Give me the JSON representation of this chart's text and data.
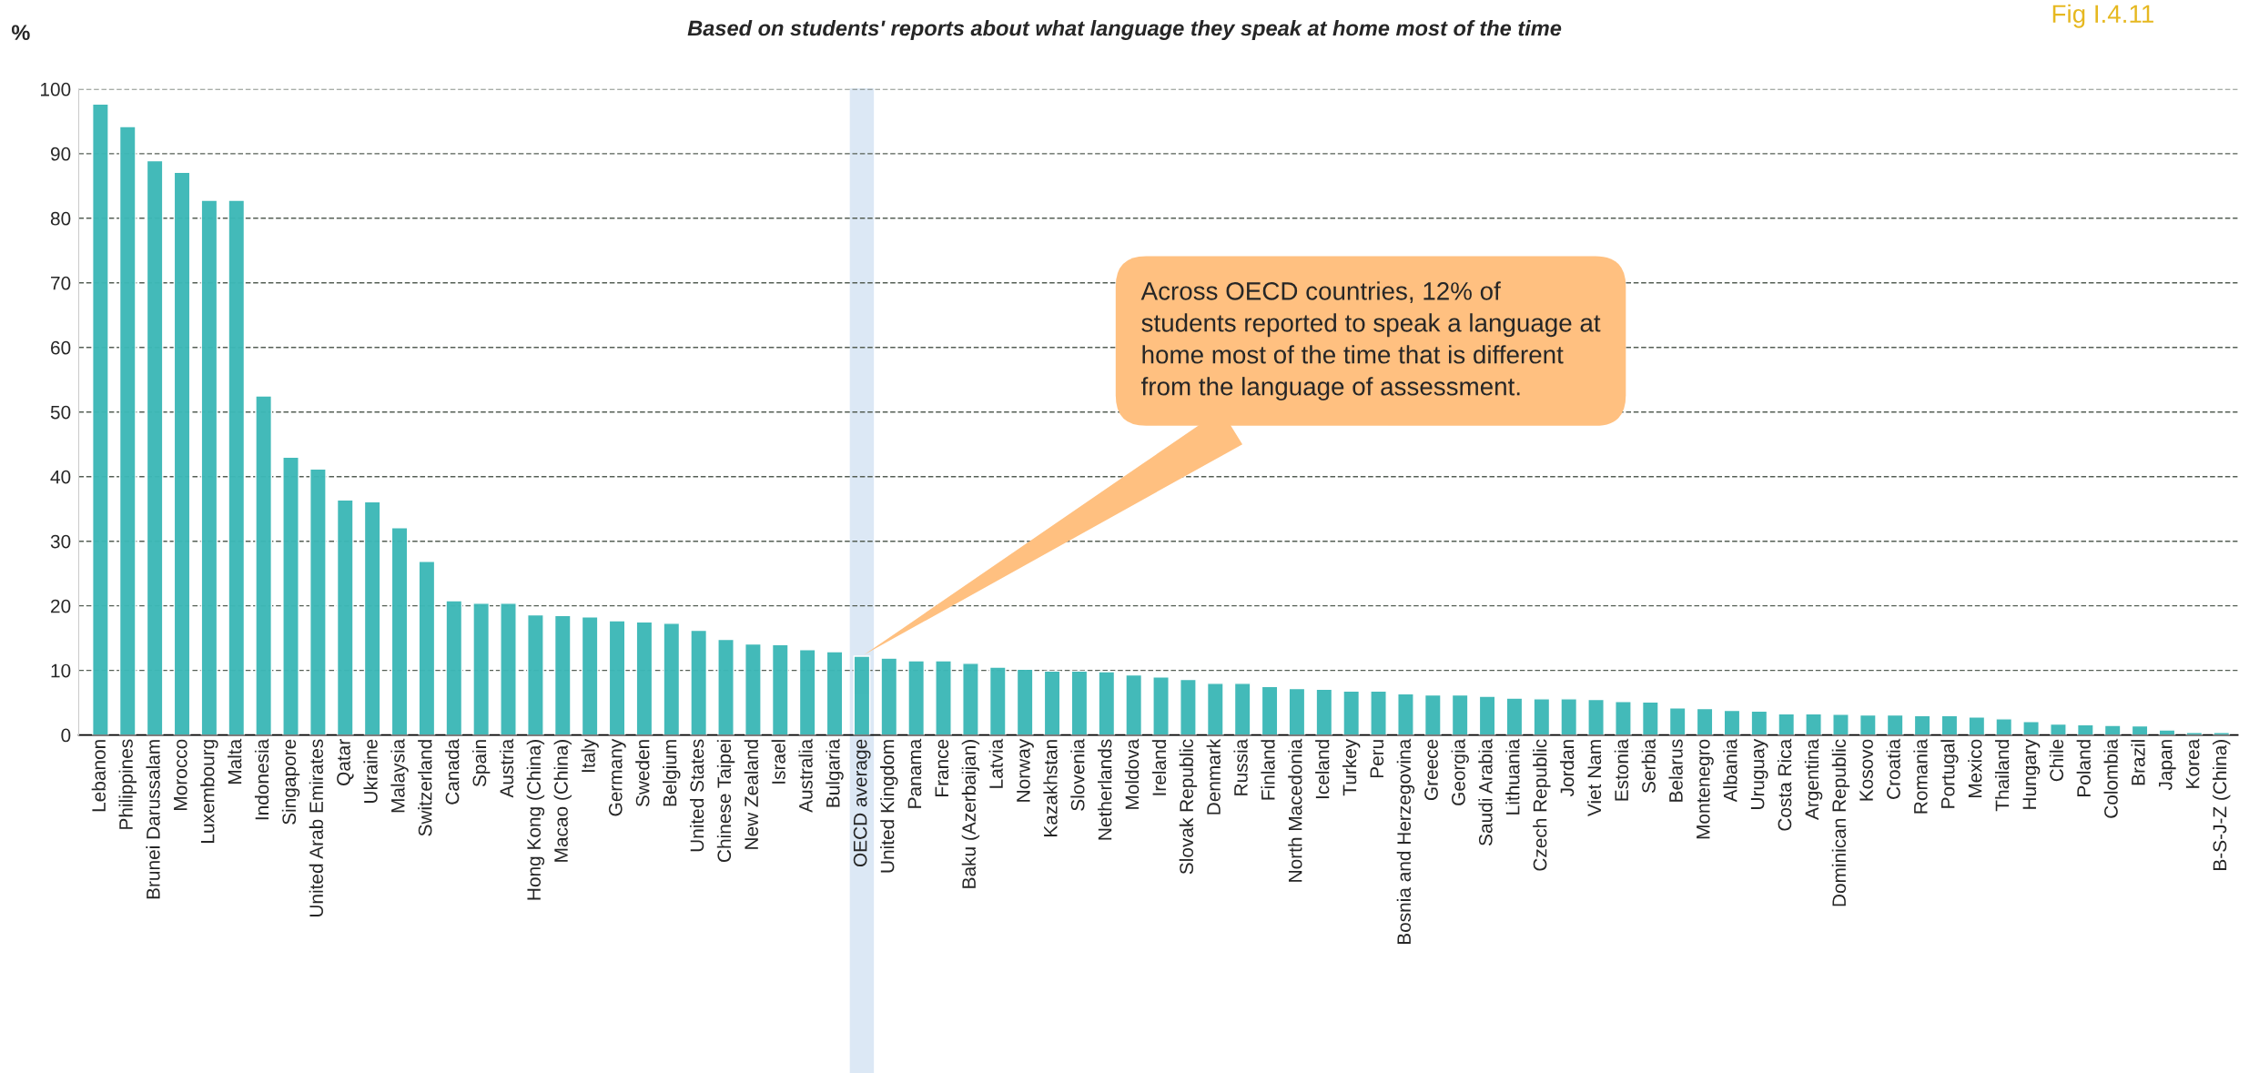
{
  "chart_data": {
    "type": "bar",
    "title": "Based on students' reports about what language they speak at home most of the time",
    "ylabel": "%",
    "categories": [
      "Lebanon",
      "Philippines",
      "Brunei Darussalam",
      "Morocco",
      "Luxembourg",
      "Malta",
      "Indonesia",
      "Singapore",
      "United Arab Emirates",
      "Qatar",
      "Ukraine",
      "Malaysia",
      "Switzerland",
      "Canada",
      "Spain",
      "Austria",
      "Hong Kong (China)",
      "Macao (China)",
      "Italy",
      "Germany",
      "Sweden",
      "Belgium",
      "United States",
      "Chinese Taipei",
      "New Zealand",
      "Israel",
      "Australia",
      "Bulgaria",
      "OECD average",
      "United Kingdom",
      "Panama",
      "France",
      "Baku (Azerbaijan)",
      "Latvia",
      "Norway",
      "Kazakhstan",
      "Slovenia",
      "Netherlands",
      "Moldova",
      "Ireland",
      "Slovak Republic",
      "Denmark",
      "Russia",
      "Finland",
      "North Macedonia",
      "Iceland",
      "Turkey",
      "Peru",
      "Bosnia and Herzegovina",
      "Greece",
      "Georgia",
      "Saudi Arabia",
      "Lithuania",
      "Czech Republic",
      "Jordan",
      "Viet Nam",
      "Estonia",
      "Serbia",
      "Belarus",
      "Montenegro",
      "Albania",
      "Uruguay",
      "Costa Rica",
      "Argentina",
      "Dominican Republic",
      "Kosovo",
      "Croatia",
      "Romania",
      "Portugal",
      "Mexico",
      "Thailand",
      "Hungary",
      "Chile",
      "Poland",
      "Colombia",
      "Brazil",
      "Japan",
      "Korea",
      "B-S-J-Z (China)"
    ],
    "values": [
      97.7,
      94.2,
      88.9,
      87.1,
      82.8,
      82.8,
      52.5,
      43.0,
      41.2,
      36.4,
      36.1,
      32.1,
      26.9,
      20.8,
      20.4,
      20.4,
      18.6,
      18.5,
      18.3,
      17.7,
      17.5,
      17.3,
      16.2,
      14.8,
      14.1,
      14.0,
      13.2,
      12.9,
      12.2,
      11.9,
      11.5,
      11.5,
      11.1,
      10.5,
      10.2,
      9.9,
      9.9,
      9.8,
      9.3,
      9.0,
      8.6,
      8.0,
      8.0,
      7.5,
      7.2,
      7.1,
      6.8,
      6.8,
      6.4,
      6.2,
      6.2,
      6.0,
      5.7,
      5.6,
      5.6,
      5.5,
      5.2,
      5.1,
      4.2,
      4.1,
      3.8,
      3.7,
      3.3,
      3.3,
      3.2,
      3.1,
      3.1,
      3.0,
      3.0,
      2.8,
      2.5,
      2.1,
      1.7,
      1.6,
      1.5,
      1.4,
      0.8,
      0.4,
      0.4
    ],
    "color": "#3db8b7",
    "ylim": [
      0,
      100
    ],
    "yticks": [
      0,
      10,
      20,
      30,
      40,
      50,
      60,
      70,
      80,
      90,
      100
    ],
    "grid": "y",
    "bands": [
      {
        "axis": "x",
        "from": "OECD average",
        "to": "OECD average",
        "color": "#dce8f5"
      }
    ],
    "annotations": [
      "Across OECD countries, 12% of\nstudents reported to speak a language at\nhome most of the time that is different\nfrom the language of assessment.",
      "Fig I.4.11"
    ]
  }
}
